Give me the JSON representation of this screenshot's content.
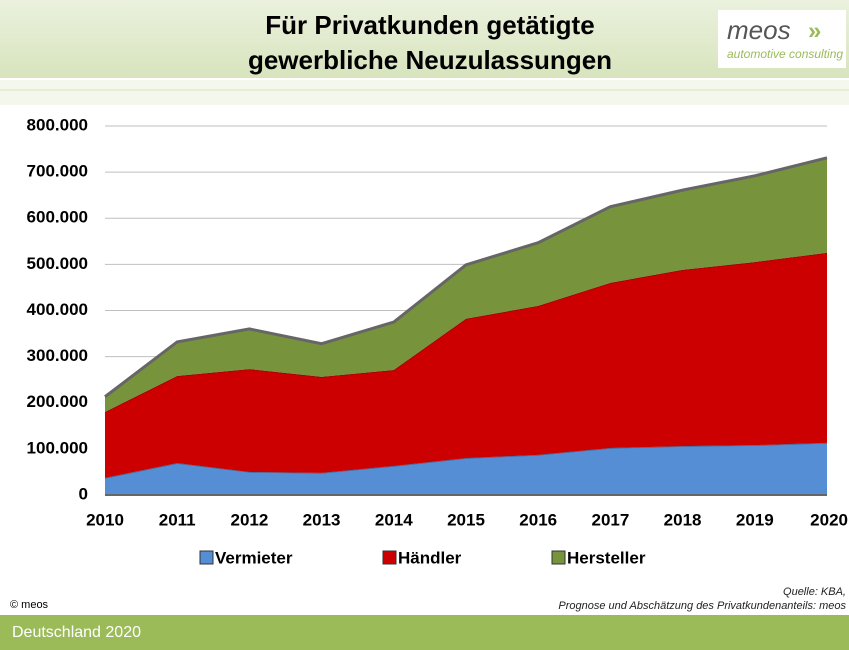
{
  "header": {
    "logo": "meos",
    "logo_tagline": "automotive consulting"
  },
  "chart_data": {
    "type": "stacked_area",
    "title": [
      "Für Privatkunden getätigte",
      "gewerbliche Neuzulassungen"
    ],
    "categories": [
      "2010",
      "2011",
      "2012",
      "2013",
      "2014",
      "2015",
      "2016",
      "2017",
      "2018",
      "2019",
      "2020"
    ],
    "series": [
      {
        "name": "Vermieter",
        "color": "#558ed5",
        "values": [
          37000,
          69000,
          50000,
          48000,
          63000,
          80000,
          87000,
          102000,
          106000,
          108000,
          113000
        ]
      },
      {
        "name": "Händler",
        "color": "#cc0000",
        "values": [
          143000,
          189000,
          223000,
          208000,
          208000,
          302000,
          323000,
          358000,
          382000,
          397000,
          412000
        ]
      },
      {
        "name": "Hersteller",
        "color": "#77933c",
        "values": [
          33000,
          74000,
          87000,
          72000,
          104000,
          117000,
          137000,
          165000,
          173000,
          187000,
          206000
        ]
      }
    ],
    "ylim": [
      0,
      800000
    ],
    "yticks": [
      0,
      {
        "value": 100000,
        "label": "100.000"
      },
      {
        "value": 200000,
        "label": "200.000"
      },
      {
        "value": 300000,
        "label": "300.000"
      },
      {
        "value": 400000,
        "label": "400.000"
      },
      {
        "value": 500000,
        "label": "500.000"
      },
      {
        "value": 600000,
        "label": "600.000"
      },
      {
        "value": 700000,
        "label": "700.000"
      },
      {
        "value": 800000,
        "label": "800.000"
      }
    ],
    "grid": true,
    "legend": "bottom"
  },
  "footer": {
    "copyright": "© meos",
    "source": "Quelle: KBA,",
    "source_note": "Prognose  und Abschätzung des Privatkundenanteils: meos",
    "region": "Deutschland 2020"
  }
}
